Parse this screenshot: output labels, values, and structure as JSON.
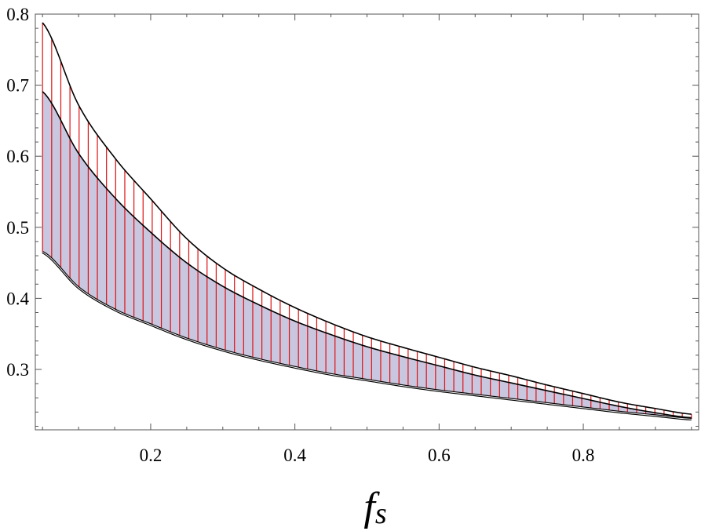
{
  "chart_data": {
    "type": "area",
    "title": "",
    "xlabel": "f",
    "xlabel_subscript": "s",
    "ylabel": "",
    "xlim": [
      0.04,
      0.96
    ],
    "ylim": [
      0.215,
      0.8
    ],
    "x_ticks": [
      0.2,
      0.4,
      0.6,
      0.8
    ],
    "x_tick_labels": [
      "0.2",
      "0.4",
      "0.6",
      "0.8"
    ],
    "y_ticks": [
      0.3,
      0.4,
      0.5,
      0.6,
      0.7,
      0.8
    ],
    "y_tick_labels": [
      "0.3",
      "0.4",
      "0.5",
      "0.6",
      "0.7",
      "0.8"
    ],
    "grid": false,
    "legend": "none",
    "x": [
      0.05,
      0.1,
      0.15,
      0.2,
      0.25,
      0.3,
      0.35,
      0.4,
      0.45,
      0.5,
      0.55,
      0.6,
      0.65,
      0.7,
      0.75,
      0.8,
      0.85,
      0.9,
      0.95
    ],
    "series": [
      {
        "key": "upper",
        "values": [
          0.788,
          0.672,
          0.598,
          0.54,
          0.484,
          0.443,
          0.413,
          0.387,
          0.365,
          0.346,
          0.331,
          0.317,
          0.303,
          0.291,
          0.278,
          0.266,
          0.254,
          0.245,
          0.237
        ],
        "style": "red vertical hatching between lower and upper curves"
      },
      {
        "key": "middle",
        "values": [
          0.691,
          0.604,
          0.542,
          0.493,
          0.45,
          0.417,
          0.391,
          0.368,
          0.349,
          0.332,
          0.318,
          0.305,
          0.292,
          0.281,
          0.27,
          0.259,
          0.248,
          0.239,
          0.232
        ],
        "style": "lavender fill between lower and middle curves"
      },
      {
        "key": "lower",
        "values": [
          0.465,
          0.415,
          0.384,
          0.363,
          0.343,
          0.327,
          0.314,
          0.303,
          0.293,
          0.285,
          0.277,
          0.27,
          0.264,
          0.258,
          0.252,
          0.246,
          0.24,
          0.235,
          0.23
        ]
      }
    ],
    "colors": {
      "fill": "#c9c6df",
      "hatch": "#e01010",
      "curve": "#000000",
      "frame": "#555555"
    }
  }
}
